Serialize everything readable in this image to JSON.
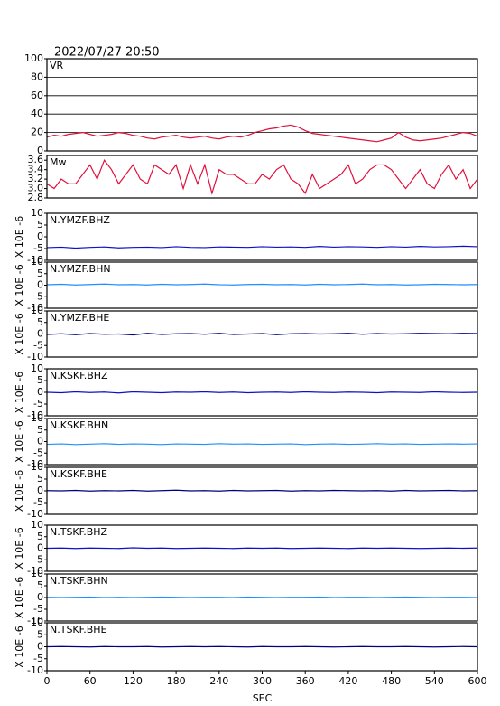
{
  "chart_data": [
    {
      "type": "line",
      "title": "2022/07/27 20:50",
      "label": "VR",
      "color": "#e0103c",
      "grid": true,
      "x": [
        0,
        10,
        20,
        30,
        40,
        50,
        60,
        70,
        80,
        90,
        100,
        110,
        120,
        130,
        140,
        150,
        160,
        170,
        180,
        190,
        200,
        210,
        220,
        230,
        240,
        250,
        260,
        270,
        280,
        290,
        300,
        310,
        320,
        330,
        340,
        350,
        360,
        370,
        380,
        390,
        400,
        410,
        420,
        430,
        440,
        450,
        460,
        470,
        480,
        490,
        500,
        510,
        520,
        530,
        540,
        550,
        560,
        570,
        580,
        590,
        600
      ],
      "values": [
        15,
        17,
        16,
        18,
        19,
        20,
        18,
        16,
        17,
        18,
        20,
        19,
        17,
        16,
        14,
        13,
        15,
        16,
        17,
        15,
        14,
        15,
        16,
        14,
        13,
        15,
        16,
        15,
        17,
        20,
        22,
        24,
        25,
        27,
        28,
        26,
        22,
        19,
        18,
        17,
        16,
        15,
        14,
        13,
        12,
        11,
        10,
        12,
        14,
        20,
        15,
        12,
        11,
        12,
        13,
        14,
        16,
        18,
        20,
        19,
        16
      ],
      "xlim": [
        0,
        600
      ],
      "ylim": [
        0,
        100
      ],
      "yticks": [
        0,
        20,
        40,
        60,
        80,
        100
      ]
    },
    {
      "type": "line",
      "label": "Mw",
      "color": "#e0103c",
      "x": [
        0,
        10,
        20,
        30,
        40,
        50,
        60,
        70,
        80,
        90,
        100,
        110,
        120,
        130,
        140,
        150,
        160,
        170,
        180,
        190,
        200,
        210,
        220,
        230,
        240,
        250,
        260,
        270,
        280,
        290,
        300,
        310,
        320,
        330,
        340,
        350,
        360,
        370,
        380,
        390,
        400,
        410,
        420,
        430,
        440,
        450,
        460,
        470,
        480,
        490,
        500,
        510,
        520,
        530,
        540,
        550,
        560,
        570,
        580,
        590,
        600
      ],
      "values": [
        3.1,
        3.0,
        3.2,
        3.1,
        3.1,
        3.3,
        3.5,
        3.2,
        3.6,
        3.4,
        3.1,
        3.3,
        3.5,
        3.2,
        3.1,
        3.5,
        3.4,
        3.3,
        3.5,
        3.0,
        3.5,
        3.1,
        3.5,
        2.9,
        3.4,
        3.3,
        3.3,
        3.2,
        3.1,
        3.1,
        3.3,
        3.2,
        3.4,
        3.5,
        3.2,
        3.1,
        2.9,
        3.3,
        3.0,
        3.1,
        3.2,
        3.3,
        3.5,
        3.1,
        3.2,
        3.4,
        3.5,
        3.5,
        3.4,
        3.2,
        3.0,
        3.2,
        3.4,
        3.1,
        3.0,
        3.3,
        3.5,
        3.2,
        3.4,
        3.0,
        3.2
      ],
      "xlim": [
        0,
        600
      ],
      "ylim": [
        2.8,
        3.7
      ],
      "yticks": [
        2.8,
        {
          "value": 3.0,
          "label": "3.0"
        },
        3.2,
        3.4,
        3.6
      ]
    },
    {
      "type": "line",
      "label": "N.YMZF.BHZ",
      "ylabel": "X 10E -6",
      "color": "#1010c8",
      "x": [
        0,
        20,
        40,
        60,
        80,
        100,
        120,
        140,
        160,
        180,
        200,
        220,
        240,
        260,
        280,
        300,
        320,
        340,
        360,
        380,
        400,
        420,
        440,
        460,
        480,
        500,
        520,
        540,
        560,
        580,
        600
      ],
      "values": [
        -4.6,
        -4.4,
        -4.8,
        -4.5,
        -4.3,
        -4.7,
        -4.5,
        -4.4,
        -4.6,
        -4.2,
        -4.5,
        -4.6,
        -4.3,
        -4.4,
        -4.5,
        -4.2,
        -4.4,
        -4.3,
        -4.5,
        -4.1,
        -4.4,
        -4.2,
        -4.3,
        -4.5,
        -4.2,
        -4.4,
        -4.1,
        -4.3,
        -4.2,
        -4.0,
        -4.2
      ],
      "xlim": [
        0,
        600
      ],
      "ylim": [
        -10,
        10
      ],
      "yticks": [
        -10,
        -5,
        0,
        5,
        10
      ]
    },
    {
      "type": "line",
      "label": "N.YMZF.BHN",
      "ylabel": "X 10E -6",
      "color": "#1e90ff",
      "x": [
        0,
        20,
        40,
        60,
        80,
        100,
        120,
        140,
        160,
        180,
        200,
        220,
        240,
        260,
        280,
        300,
        320,
        340,
        360,
        380,
        400,
        420,
        440,
        460,
        480,
        500,
        520,
        540,
        560,
        580,
        600
      ],
      "values": [
        0.2,
        0.4,
        0.1,
        0.3,
        0.5,
        0.2,
        0.3,
        0.1,
        0.4,
        0.2,
        0.3,
        0.5,
        0.2,
        0.1,
        0.3,
        0.4,
        0.2,
        0.3,
        0.1,
        0.4,
        0.2,
        0.3,
        0.5,
        0.2,
        0.3,
        0.1,
        0.2,
        0.4,
        0.3,
        0.2,
        0.3
      ],
      "xlim": [
        0,
        600
      ],
      "ylim": [
        -10,
        10
      ],
      "yticks": [
        -10,
        -5,
        0,
        5,
        10
      ]
    },
    {
      "type": "line",
      "label": "N.YMZF.BHE",
      "ylabel": "X 10E -6",
      "color": "#000080",
      "x": [
        0,
        20,
        40,
        60,
        80,
        100,
        120,
        140,
        160,
        180,
        200,
        220,
        240,
        260,
        280,
        300,
        320,
        340,
        360,
        380,
        400,
        420,
        440,
        460,
        480,
        500,
        520,
        540,
        560,
        580,
        600
      ],
      "values": [
        -0.2,
        0.1,
        -0.3,
        0.2,
        -0.1,
        0.0,
        -0.4,
        0.3,
        -0.2,
        0.1,
        0.2,
        -0.1,
        0.3,
        -0.2,
        0.0,
        0.2,
        -0.3,
        0.1,
        0.2,
        0.0,
        0.1,
        0.3,
        -0.1,
        0.2,
        0.0,
        0.1,
        0.3,
        0.2,
        0.1,
        0.3,
        0.2
      ],
      "xlim": [
        0,
        600
      ],
      "ylim": [
        -10,
        10
      ],
      "yticks": [
        -10,
        -5,
        0,
        5,
        10
      ]
    },
    {
      "type": "line",
      "label": "N.KSKF.BHZ",
      "ylabel": "X 10E -6",
      "color": "#1010c8",
      "x": [
        0,
        20,
        40,
        60,
        80,
        100,
        120,
        140,
        160,
        180,
        200,
        220,
        240,
        260,
        280,
        300,
        320,
        340,
        360,
        380,
        400,
        420,
        440,
        460,
        480,
        500,
        520,
        540,
        560,
        580,
        600
      ],
      "values": [
        0.0,
        -0.2,
        0.2,
        -0.1,
        0.1,
        -0.3,
        0.2,
        0.0,
        -0.2,
        0.1,
        0.0,
        0.2,
        -0.1,
        0.1,
        -0.2,
        0.0,
        0.1,
        -0.1,
        0.2,
        0.0,
        -0.1,
        0.1,
        0.0,
        -0.2,
        0.1,
        0.0,
        -0.1,
        0.2,
        0.0,
        -0.1,
        0.0
      ],
      "xlim": [
        0,
        600
      ],
      "ylim": [
        -10,
        10
      ],
      "yticks": [
        -10,
        -5,
        0,
        5,
        10
      ]
    },
    {
      "type": "line",
      "label": "N.KSKF.BHN",
      "ylabel": "X 10E -6",
      "color": "#1e90ff",
      "x": [
        0,
        20,
        40,
        60,
        80,
        100,
        120,
        140,
        160,
        180,
        200,
        220,
        240,
        260,
        280,
        300,
        320,
        340,
        360,
        380,
        400,
        420,
        440,
        460,
        480,
        500,
        520,
        540,
        560,
        580,
        600
      ],
      "values": [
        -1.2,
        -1.0,
        -1.3,
        -1.1,
        -0.9,
        -1.2,
        -1.0,
        -1.1,
        -1.3,
        -1.0,
        -1.1,
        -1.2,
        -0.9,
        -1.1,
        -1.0,
        -1.2,
        -1.1,
        -1.0,
        -1.3,
        -1.1,
        -1.0,
        -1.2,
        -1.1,
        -0.9,
        -1.1,
        -1.0,
        -1.2,
        -1.1,
        -1.0,
        -1.1,
        -1.0
      ],
      "xlim": [
        0,
        600
      ],
      "ylim": [
        -10,
        10
      ],
      "yticks": [
        -10,
        -5,
        0,
        5,
        10
      ]
    },
    {
      "type": "line",
      "label": "N.KSKF.BHE",
      "ylabel": "X 10E -6",
      "color": "#000080",
      "x": [
        0,
        20,
        40,
        60,
        80,
        100,
        120,
        140,
        160,
        180,
        200,
        220,
        240,
        260,
        280,
        300,
        320,
        340,
        360,
        380,
        400,
        420,
        440,
        460,
        480,
        500,
        520,
        540,
        560,
        580,
        600
      ],
      "values": [
        0.1,
        0.0,
        0.2,
        -0.1,
        0.1,
        0.0,
        0.2,
        -0.1,
        0.1,
        0.3,
        0.0,
        0.1,
        -0.1,
        0.2,
        0.0,
        0.1,
        0.2,
        -0.1,
        0.1,
        0.0,
        0.2,
        0.1,
        0.0,
        0.1,
        -0.1,
        0.2,
        0.0,
        0.1,
        0.2,
        0.0,
        0.1
      ],
      "xlim": [
        0,
        600
      ],
      "ylim": [
        -10,
        10
      ],
      "yticks": [
        -10,
        -5,
        0,
        5,
        10
      ]
    },
    {
      "type": "line",
      "label": "N.TSKF.BHZ",
      "ylabel": "X 10E -6",
      "color": "#1010c8",
      "x": [
        0,
        20,
        40,
        60,
        80,
        100,
        120,
        140,
        160,
        180,
        200,
        220,
        240,
        260,
        280,
        300,
        320,
        340,
        360,
        380,
        400,
        420,
        440,
        460,
        480,
        500,
        520,
        540,
        560,
        580,
        600
      ],
      "values": [
        0.0,
        0.1,
        -0.1,
        0.1,
        0.0,
        -0.1,
        0.2,
        0.0,
        0.1,
        -0.1,
        0.0,
        0.1,
        0.0,
        -0.1,
        0.1,
        0.0,
        0.1,
        -0.1,
        0.0,
        0.1,
        0.0,
        -0.1,
        0.1,
        0.0,
        0.1,
        0.0,
        -0.1,
        0.0,
        0.1,
        0.0,
        0.1
      ],
      "xlim": [
        0,
        600
      ],
      "ylim": [
        -10,
        10
      ],
      "yticks": [
        -10,
        -5,
        0,
        5,
        10
      ]
    },
    {
      "type": "line",
      "label": "N.TSKF.BHN",
      "ylabel": "X 10E -6",
      "color": "#1e90ff",
      "x": [
        0,
        20,
        40,
        60,
        80,
        100,
        120,
        140,
        160,
        180,
        200,
        220,
        240,
        260,
        280,
        300,
        320,
        340,
        360,
        380,
        400,
        420,
        440,
        460,
        480,
        500,
        520,
        540,
        560,
        580,
        600
      ],
      "values": [
        0.1,
        0.0,
        0.1,
        0.2,
        0.0,
        0.1,
        0.0,
        0.1,
        0.2,
        0.1,
        0.0,
        0.1,
        0.1,
        0.0,
        0.2,
        0.1,
        0.0,
        0.1,
        0.1,
        0.2,
        0.0,
        0.1,
        0.1,
        0.0,
        0.1,
        0.2,
        0.1,
        0.0,
        0.1,
        0.1,
        0.0
      ],
      "xlim": [
        0,
        600
      ],
      "ylim": [
        -10,
        10
      ],
      "yticks": [
        -10,
        -5,
        0,
        5,
        10
      ]
    },
    {
      "type": "line",
      "label": "N.TSKF.BHE",
      "ylabel": "X 10E -6",
      "color": "#000080",
      "xlabel": "SEC",
      "x": [
        0,
        20,
        40,
        60,
        80,
        100,
        120,
        140,
        160,
        180,
        200,
        220,
        240,
        260,
        280,
        300,
        320,
        340,
        360,
        380,
        400,
        420,
        440,
        460,
        480,
        500,
        520,
        540,
        560,
        580,
        600
      ],
      "values": [
        0.0,
        0.1,
        0.0,
        -0.1,
        0.1,
        0.0,
        0.0,
        0.1,
        -0.1,
        0.0,
        0.1,
        0.0,
        0.1,
        0.0,
        -0.1,
        0.1,
        0.0,
        0.0,
        0.1,
        0.0,
        -0.1,
        0.0,
        0.1,
        0.0,
        0.0,
        0.1,
        0.0,
        -0.1,
        0.0,
        0.1,
        0.0
      ],
      "xlim": [
        0,
        600
      ],
      "ylim": [
        -10,
        10
      ],
      "yticks": [
        -10,
        -5,
        0,
        5,
        10
      ],
      "xticks": [
        0,
        60,
        120,
        180,
        240,
        300,
        360,
        420,
        480,
        540,
        600
      ]
    }
  ]
}
